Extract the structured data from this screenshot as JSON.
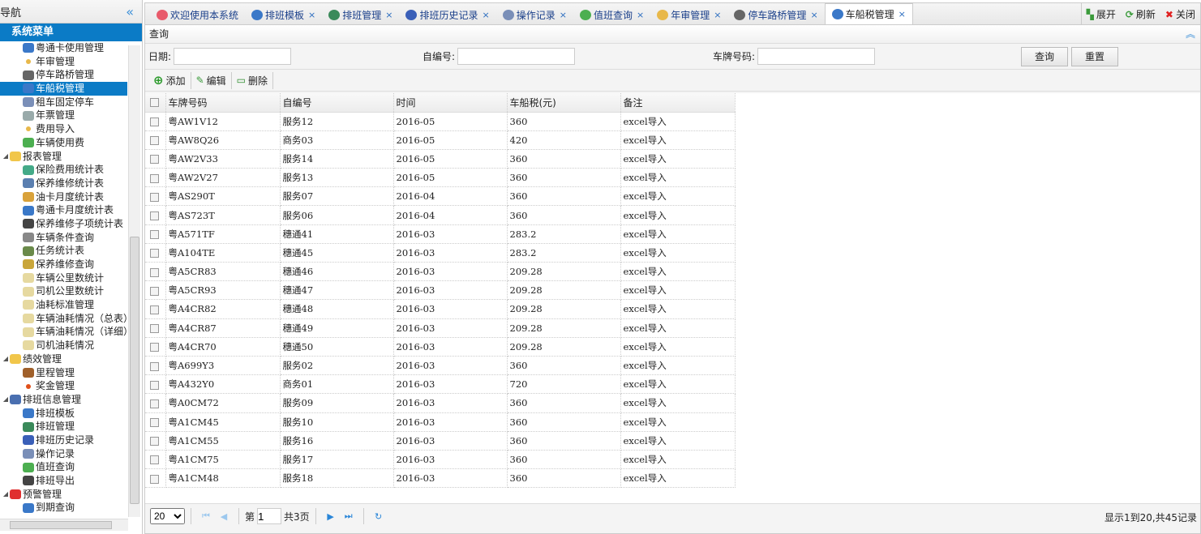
{
  "sidebar": {
    "title": "导航",
    "menu_title": "系统菜单",
    "items": [
      {
        "label": "粤通卡使用管理",
        "level": 1,
        "color": "#3a78c8"
      },
      {
        "label": "年审管理",
        "level": 1,
        "color": "#e8b84a",
        "dot": true
      },
      {
        "label": "停车路桥管理",
        "level": 1,
        "color": "#666"
      },
      {
        "label": "车船税管理",
        "level": 1,
        "color": "#3a78c8",
        "selected": true
      },
      {
        "label": "租车固定停车",
        "level": 1,
        "color": "#7a8fb8"
      },
      {
        "label": "年票管理",
        "level": 1,
        "color": "#9aa"
      },
      {
        "label": "费用导入",
        "level": 1,
        "color": "#e8b84a",
        "dot": true
      },
      {
        "label": "车辆使用费",
        "level": 1,
        "color": "#4caf50"
      },
      {
        "label": "报表管理",
        "level": 0,
        "color": "#f1c64a"
      },
      {
        "label": "保险费用统计表",
        "level": 1,
        "color": "#4a8"
      },
      {
        "label": "保养维修统计表",
        "level": 1,
        "color": "#5a7fb0"
      },
      {
        "label": "油卡月度统计表",
        "level": 1,
        "color": "#d9a23a"
      },
      {
        "label": "粤通卡月度统计表",
        "level": 1,
        "color": "#3a78c8"
      },
      {
        "label": "保养维修子项统计表",
        "level": 1,
        "color": "#444"
      },
      {
        "label": "车辆条件查询",
        "level": 1,
        "color": "#888"
      },
      {
        "label": "任务统计表",
        "level": 1,
        "color": "#6a8a4a"
      },
      {
        "label": "保养维修查询",
        "level": 1,
        "color": "#c9a63a"
      },
      {
        "label": "车辆公里数统计",
        "level": 1,
        "color": "#e6d9a0"
      },
      {
        "label": "司机公里数统计",
        "level": 1,
        "color": "#e6d9a0"
      },
      {
        "label": "油耗标准管理",
        "level": 1,
        "color": "#e6d9a0"
      },
      {
        "label": "车辆油耗情况（总表）",
        "level": 1,
        "color": "#e6d9a0"
      },
      {
        "label": "车辆油耗情况（详细）",
        "level": 1,
        "color": "#e6d9a0"
      },
      {
        "label": "司机油耗情况",
        "level": 1,
        "color": "#e6d9a0"
      },
      {
        "label": "绩效管理",
        "level": 0,
        "color": "#f1c64a"
      },
      {
        "label": "里程管理",
        "level": 1,
        "color": "#a0602a"
      },
      {
        "label": "奖金管理",
        "level": 1,
        "color": "#e0501a",
        "dot": true
      },
      {
        "label": "排班信息管理",
        "level": 0,
        "color": "#4a6fb0"
      },
      {
        "label": "排班模板",
        "level": 1,
        "color": "#3a78c8"
      },
      {
        "label": "排班管理",
        "level": 1,
        "color": "#3a8a5a"
      },
      {
        "label": "排班历史记录",
        "level": 1,
        "color": "#3a5fb8"
      },
      {
        "label": "操作记录",
        "level": 1,
        "color": "#7a8fb8"
      },
      {
        "label": "值班查询",
        "level": 1,
        "color": "#4caf50"
      },
      {
        "label": "排班导出",
        "level": 1,
        "color": "#444"
      },
      {
        "label": "预警管理",
        "level": 0,
        "color": "#e03030"
      },
      {
        "label": "到期查询",
        "level": 1,
        "color": "#3a78c8"
      }
    ]
  },
  "tabs": [
    {
      "label": "欢迎使用本系统",
      "icon": "heart-icon",
      "color": "#e85a6a",
      "closable": false
    },
    {
      "label": "排班模板",
      "icon": "alarm-clock-icon",
      "color": "#3a78c8",
      "closable": true
    },
    {
      "label": "排班管理",
      "icon": "transfer-icon",
      "color": "#3a8a5a",
      "closable": true
    },
    {
      "label": "排班历史记录",
      "icon": "pen-icon",
      "color": "#3a5fb8",
      "closable": true
    },
    {
      "label": "操作记录",
      "icon": "wrench-icon",
      "color": "#7a8fb8",
      "closable": true
    },
    {
      "label": "值班查询",
      "icon": "money-icon",
      "color": "#4caf50",
      "closable": true
    },
    {
      "label": "年审管理",
      "icon": "dot-icon",
      "color": "#e8b84a",
      "closable": true
    },
    {
      "label": "停车路桥管理",
      "icon": "parking-icon",
      "color": "#666",
      "closable": true
    },
    {
      "label": "车船税管理",
      "icon": "alarm-clock-icon",
      "color": "#3a78c8",
      "closable": true,
      "active": true
    }
  ],
  "tab_tools": {
    "expand": "展开",
    "refresh": "刷新",
    "close": "关闭"
  },
  "panel": {
    "title": "查询"
  },
  "form": {
    "date_label": "日期:",
    "date_value": "",
    "code_label": "自编号:",
    "code_value": "",
    "plate_label": "车牌号码:",
    "plate_value": "",
    "search": "查询",
    "reset": "重置"
  },
  "toolbar": {
    "add": "添加",
    "edit": "编辑",
    "delete": "删除"
  },
  "table": {
    "columns": [
      "车牌号码",
      "自编号",
      "时间",
      "车船税(元)",
      "备注"
    ],
    "rows": [
      [
        "粤AW1V12",
        "服务12",
        "2016-05",
        "360",
        "excel导入"
      ],
      [
        "粤AW8Q26",
        "商务03",
        "2016-05",
        "420",
        "excel导入"
      ],
      [
        "粤AW2V33",
        "服务14",
        "2016-05",
        "360",
        "excel导入"
      ],
      [
        "粤AW2V27",
        "服务13",
        "2016-05",
        "360",
        "excel导入"
      ],
      [
        "粤AS290T",
        "服务07",
        "2016-04",
        "360",
        "excel导入"
      ],
      [
        "粤AS723T",
        "服务06",
        "2016-04",
        "360",
        "excel导入"
      ],
      [
        "粤A571TF",
        "穗通41",
        "2016-03",
        "283.2",
        "excel导入"
      ],
      [
        "粤A104TE",
        "穗通45",
        "2016-03",
        "283.2",
        "excel导入"
      ],
      [
        "粤A5CR83",
        "穗通46",
        "2016-03",
        "209.28",
        "excel导入"
      ],
      [
        "粤A5CR93",
        "穗通47",
        "2016-03",
        "209.28",
        "excel导入"
      ],
      [
        "粤A4CR82",
        "穗通48",
        "2016-03",
        "209.28",
        "excel导入"
      ],
      [
        "粤A4CR87",
        "穗通49",
        "2016-03",
        "209.28",
        "excel导入"
      ],
      [
        "粤A4CR70",
        "穗通50",
        "2016-03",
        "209.28",
        "excel导入"
      ],
      [
        "粤A699Y3",
        "服务02",
        "2016-03",
        "360",
        "excel导入"
      ],
      [
        "粤A432Y0",
        "商务01",
        "2016-03",
        "720",
        "excel导入"
      ],
      [
        "粤A0CM72",
        "服务09",
        "2016-03",
        "360",
        "excel导入"
      ],
      [
        "粤A1CM45",
        "服务10",
        "2016-03",
        "360",
        "excel导入"
      ],
      [
        "粤A1CM55",
        "服务16",
        "2016-03",
        "360",
        "excel导入"
      ],
      [
        "粤A1CM75",
        "服务17",
        "2016-03",
        "360",
        "excel导入"
      ],
      [
        "粤A1CM48",
        "服务18",
        "2016-03",
        "360",
        "excel导入"
      ]
    ]
  },
  "pager": {
    "page_size": "20",
    "page_prefix": "第",
    "page": "1",
    "page_total": "共3页",
    "info": "显示1到20,共45记录"
  }
}
